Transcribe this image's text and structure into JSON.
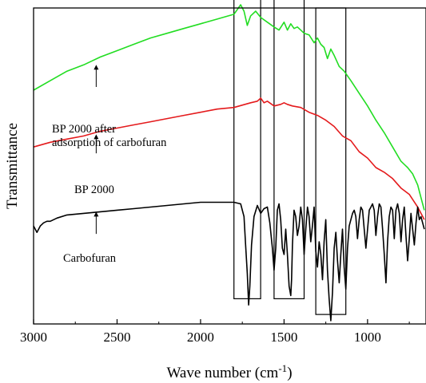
{
  "chart_data": {
    "type": "line",
    "title": "",
    "xlabel": "Wave number (cm",
    "xlabel_sup": "-1",
    "xlabel_close": ")",
    "ylabel": "Transmittance",
    "xlim": [
      3000,
      650
    ],
    "ylim": [
      0,
      100
    ],
    "x_reversed": true,
    "xticks": [
      3000,
      2500,
      2000,
      1500,
      1000
    ],
    "xtick_labels": [
      "3000",
      "2500",
      "2000",
      "1500",
      "1000"
    ],
    "y_tick_labels": false,
    "grid": false,
    "series": [
      {
        "name": "BP 2000 after adsorption of carbofuran",
        "color": "#22dd22",
        "x": [
          3000,
          2900,
          2800,
          2700,
          2600,
          2500,
          2400,
          2300,
          2200,
          2100,
          2000,
          1900,
          1800,
          1760,
          1740,
          1720,
          1700,
          1670,
          1640,
          1600,
          1560,
          1530,
          1500,
          1480,
          1460,
          1440,
          1420,
          1400,
          1380,
          1350,
          1320,
          1300,
          1280,
          1260,
          1240,
          1220,
          1200,
          1170,
          1140,
          1100,
          1050,
          1000,
          950,
          900,
          850,
          800,
          760,
          730,
          700,
          680,
          660
        ],
        "y": [
          74,
          77,
          80,
          82,
          84.5,
          86.5,
          88.5,
          90.5,
          92,
          93.5,
          95,
          96.5,
          98,
          101,
          99,
          94.5,
          97.5,
          99,
          97,
          95.5,
          94,
          93,
          95.5,
          93,
          95,
          93.5,
          94,
          93,
          92,
          91.5,
          89,
          90.5,
          88.5,
          87.5,
          84,
          87,
          85,
          81.5,
          80,
          77,
          73,
          69,
          64.5,
          60.5,
          56,
          51.5,
          49.5,
          47.5,
          44,
          40,
          36
        ]
      },
      {
        "name": "BP 2000",
        "color": "#e41a1c",
        "x": [
          3000,
          2900,
          2800,
          2700,
          2600,
          2500,
          2400,
          2300,
          2200,
          2100,
          2000,
          1900,
          1800,
          1700,
          1660,
          1640,
          1620,
          1600,
          1560,
          1520,
          1500,
          1480,
          1450,
          1400,
          1350,
          1300,
          1250,
          1200,
          1150,
          1100,
          1050,
          1000,
          950,
          900,
          850,
          800,
          750,
          700,
          660
        ],
        "y": [
          56,
          57.5,
          58.5,
          59.5,
          61,
          62,
          63,
          64,
          65,
          66,
          67,
          68,
          68.5,
          70,
          70.5,
          71.5,
          70,
          70.5,
          69,
          69.5,
          70,
          69.5,
          69,
          68.5,
          67,
          66,
          64.5,
          62.5,
          59.5,
          58,
          54.5,
          52.5,
          49.5,
          48,
          46,
          43,
          41,
          37,
          33
        ]
      },
      {
        "name": "Carbofuran",
        "color": "#000000",
        "x": [
          3000,
          2980,
          2960,
          2940,
          2920,
          2900,
          2880,
          2860,
          2800,
          2700,
          2600,
          2500,
          2400,
          2300,
          2200,
          2100,
          2000,
          1900,
          1800,
          1760,
          1740,
          1730,
          1720,
          1712,
          1705,
          1695,
          1680,
          1660,
          1640,
          1620,
          1600,
          1585,
          1570,
          1560,
          1550,
          1540,
          1530,
          1520,
          1510,
          1500,
          1490,
          1480,
          1470,
          1460,
          1455,
          1450,
          1440,
          1430,
          1420,
          1410,
          1400,
          1390,
          1380,
          1370,
          1360,
          1350,
          1340,
          1330,
          1320,
          1310,
          1300,
          1290,
          1280,
          1270,
          1260,
          1250,
          1240,
          1230,
          1220,
          1210,
          1200,
          1190,
          1180,
          1170,
          1160,
          1150,
          1140,
          1130,
          1120,
          1110,
          1100,
          1090,
          1080,
          1070,
          1060,
          1050,
          1040,
          1030,
          1020,
          1010,
          1000,
          990,
          980,
          970,
          960,
          950,
          940,
          930,
          920,
          910,
          900,
          890,
          880,
          870,
          860,
          850,
          840,
          830,
          820,
          810,
          800,
          790,
          780,
          770,
          760,
          750,
          740,
          730,
          720,
          710,
          700,
          690,
          680,
          670,
          660
        ],
        "y": [
          31,
          29,
          31,
          32,
          32.5,
          32.5,
          33,
          33.5,
          34.5,
          35,
          35.5,
          36,
          36.5,
          37,
          37.5,
          38,
          38.5,
          38.5,
          38.5,
          38,
          34,
          25,
          16,
          6,
          12,
          25,
          34,
          37.5,
          35,
          36.5,
          37,
          32,
          24,
          17,
          24,
          36,
          38,
          33,
          24,
          22,
          30,
          22,
          12,
          9,
          14,
          25,
          36,
          34,
          28,
          31,
          37,
          33,
          22,
          30,
          37,
          34,
          26,
          31,
          37,
          23,
          18,
          26,
          22,
          14,
          26,
          33,
          17,
          8,
          1,
          10,
          24,
          29,
          20,
          13,
          22,
          30,
          18,
          11,
          24,
          31,
          33,
          35,
          36,
          34,
          27,
          33,
          37,
          36,
          30,
          24,
          30,
          36,
          37,
          38,
          36,
          28,
          34,
          38,
          37,
          30,
          22,
          13,
          26,
          34,
          37,
          36,
          27,
          36,
          38,
          35,
          26,
          33,
          37,
          28,
          20,
          27,
          35,
          30,
          25,
          32,
          37,
          33,
          34,
          32,
          30
        ]
      }
    ],
    "annotations": [
      {
        "lines": [
          "BP 2000 after",
          "adsorption of carbofuran"
        ],
        "arrow_x": 2625,
        "arrow_y_tip": 82,
        "arrow_y_tail": 75
      },
      {
        "lines": [
          "BP 2000"
        ],
        "arrow_x": 2625,
        "arrow_y_tip": 60,
        "arrow_y_tail": 54
      },
      {
        "lines": [
          "Carbofuran"
        ],
        "arrow_x": 2625,
        "arrow_y_tip": 35.5,
        "arrow_y_tail": 28.5
      }
    ],
    "boxes": [
      {
        "x_from": 1800,
        "x_to": 1640,
        "y_from": 8,
        "y_to": 104
      },
      {
        "x_from": 1560,
        "x_to": 1380,
        "y_from": 8,
        "y_to": 104
      },
      {
        "x_from": 1310,
        "x_to": 1130,
        "y_from": 3,
        "y_to": 100
      }
    ]
  }
}
